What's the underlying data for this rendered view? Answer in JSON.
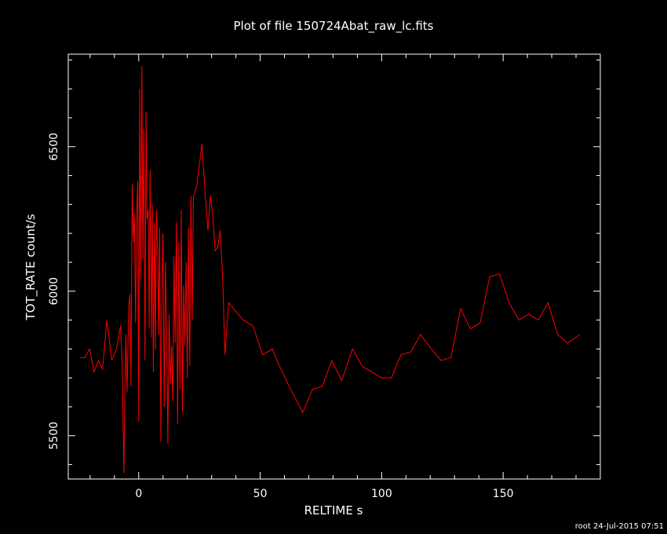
{
  "chart_data": {
    "type": "line",
    "title": "Plot of file 150724Abat_raw_lc.fits",
    "xlabel": "RELTIME  s",
    "ylabel": "TOT_RATE  count/s",
    "xlim": [
      -29,
      190
    ],
    "ylim": [
      5350,
      6820
    ],
    "x_ticks": [
      0,
      50,
      100,
      150
    ],
    "x_tick_labels": [
      "0",
      "50",
      "100",
      "150"
    ],
    "y_ticks": [
      5500,
      6000,
      6500
    ],
    "y_tick_labels": [
      "5500",
      "6000",
      "6500"
    ],
    "grid": false,
    "series": [
      {
        "color": "#ff0000",
        "x": [
          -24.2,
          -22.2,
          -20.2,
          -18.4,
          -16.6,
          -14.9,
          -13.1,
          -11.1,
          -9.2,
          -7.5,
          -6.8,
          -6.1,
          -5.8,
          -5.3,
          -4.8,
          -4.1,
          -3.6,
          -3.2,
          -2.7,
          -2.2,
          -1.8,
          -1.3,
          -0.9,
          -0.4,
          0.0,
          0.4,
          0.8,
          1.3,
          1.7,
          2.1,
          2.6,
          3.0,
          3.4,
          3.9,
          4.3,
          4.7,
          5.2,
          5.6,
          6.0,
          6.5,
          6.9,
          7.3,
          7.8,
          8.2,
          8.6,
          9.1,
          9.5,
          10.0,
          10.5,
          11.0,
          11.5,
          12.0,
          12.5,
          13.0,
          13.5,
          14.0,
          14.5,
          15.0,
          15.5,
          16.0,
          16.5,
          17.0,
          17.5,
          18.0,
          18.5,
          19.0,
          19.5,
          20.0,
          20.5,
          21.0,
          21.5,
          22.0,
          22.5,
          23.0,
          24.0,
          26.0,
          27.5,
          28.5,
          29.5,
          30.5,
          31.5,
          32.5,
          33.5,
          34.5,
          35.5,
          37.0,
          39.0,
          43.0,
          47.0,
          51.0,
          55.0,
          58.0,
          62.0,
          67.5,
          71.5,
          75.5,
          79.5,
          83.5,
          88.0,
          92.0,
          96.0,
          100.0,
          104.0,
          108.0,
          112.0,
          116.0,
          120.5,
          124.5,
          128.5,
          132.5,
          136.5,
          140.5,
          144.5,
          148.5,
          152.5,
          156.5,
          160.5,
          164.5,
          168.5,
          172.5,
          176.5,
          181.5
        ],
        "y": [
          5770,
          5770,
          5800,
          5720,
          5760,
          5730,
          5900,
          5760,
          5800,
          5880,
          5750,
          5370,
          5600,
          5850,
          5650,
          5950,
          5990,
          5670,
          6370,
          6170,
          6270,
          5890,
          6240,
          6380,
          5550,
          6700,
          6040,
          6780,
          6110,
          6560,
          5760,
          6620,
          6250,
          6280,
          5870,
          6420,
          5840,
          6300,
          5720,
          6240,
          5800,
          6280,
          6140,
          5850,
          6220,
          5480,
          5980,
          6200,
          5600,
          6100,
          5840,
          5470,
          5920,
          5680,
          5810,
          5620,
          6120,
          5820,
          6240,
          5540,
          6170,
          5660,
          6280,
          5580,
          6020,
          5810,
          6100,
          5700,
          6220,
          5740,
          6330,
          5900,
          6330,
          6340,
          6370,
          6510,
          6320,
          6210,
          6330,
          6260,
          6140,
          6150,
          6210,
          6060,
          5780,
          5960,
          5940,
          5900,
          5880,
          5780,
          5800,
          5740,
          5670,
          5580,
          5660,
          5670,
          5760,
          5690,
          5800,
          5740,
          5720,
          5700,
          5700,
          5780,
          5790,
          5850,
          5800,
          5760,
          5770,
          5940,
          5870,
          5890,
          6050,
          6060,
          5960,
          5900,
          5920,
          5900,
          5960,
          5850,
          5820,
          5850
        ]
      }
    ]
  },
  "footer": "root 24-Jul-2015 07:51"
}
